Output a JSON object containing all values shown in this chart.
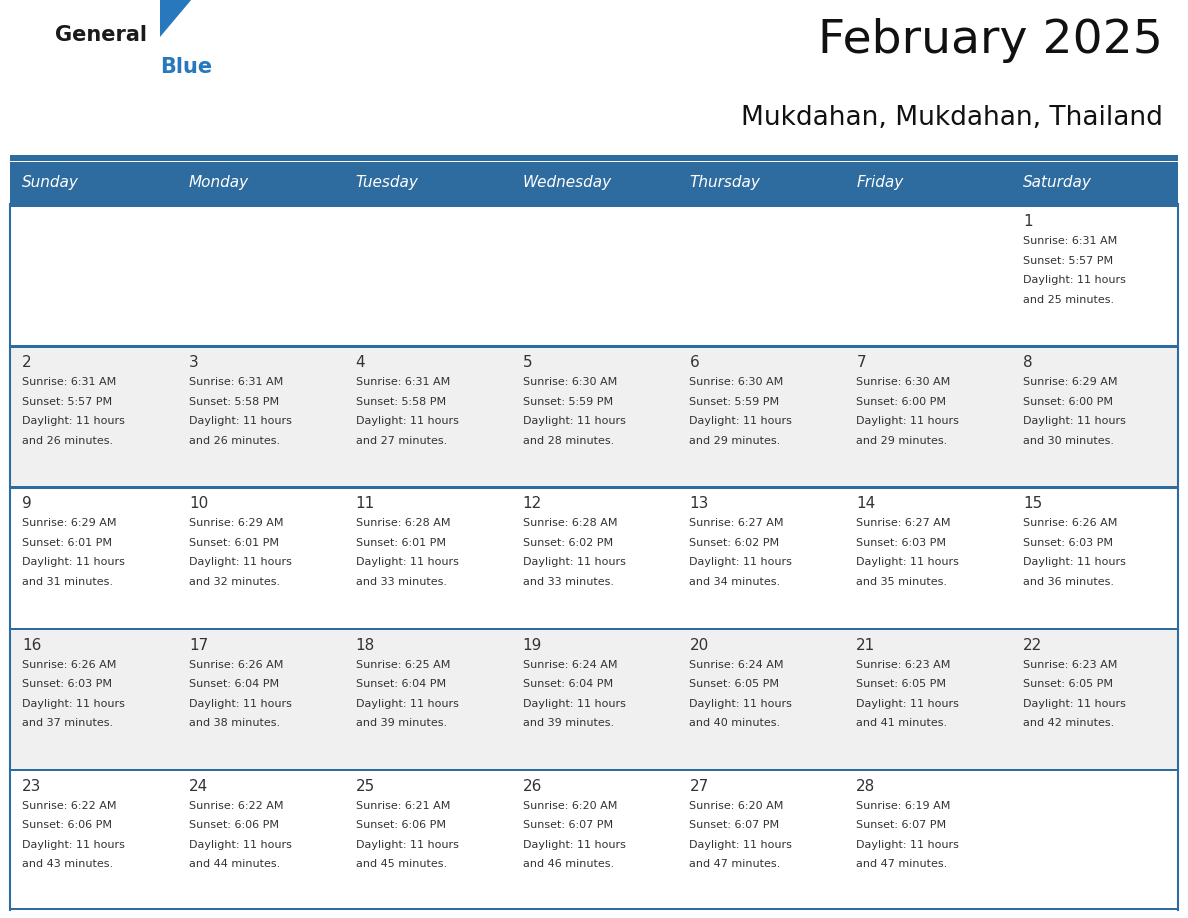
{
  "title": "February 2025",
  "subtitle": "Mukdahan, Mukdahan, Thailand",
  "header_bg": "#2E6B9E",
  "header_text_color": "#FFFFFF",
  "cell_bg_white": "#FFFFFF",
  "cell_bg_gray": "#F0F0F0",
  "border_color": "#2E6B9E",
  "text_color": "#333333",
  "day_headers": [
    "Sunday",
    "Monday",
    "Tuesday",
    "Wednesday",
    "Thursday",
    "Friday",
    "Saturday"
  ],
  "logo_text1": "General",
  "logo_text2": "Blue",
  "logo_color1": "#1a1a1a",
  "logo_color2": "#2878BE",
  "logo_triangle_color": "#2878BE",
  "weeks": [
    [
      {
        "day": null,
        "info": null
      },
      {
        "day": null,
        "info": null
      },
      {
        "day": null,
        "info": null
      },
      {
        "day": null,
        "info": null
      },
      {
        "day": null,
        "info": null
      },
      {
        "day": null,
        "info": null
      },
      {
        "day": 1,
        "info": "Sunrise: 6:31 AM\nSunset: 5:57 PM\nDaylight: 11 hours\nand 25 minutes."
      }
    ],
    [
      {
        "day": 2,
        "info": "Sunrise: 6:31 AM\nSunset: 5:57 PM\nDaylight: 11 hours\nand 26 minutes."
      },
      {
        "day": 3,
        "info": "Sunrise: 6:31 AM\nSunset: 5:58 PM\nDaylight: 11 hours\nand 26 minutes."
      },
      {
        "day": 4,
        "info": "Sunrise: 6:31 AM\nSunset: 5:58 PM\nDaylight: 11 hours\nand 27 minutes."
      },
      {
        "day": 5,
        "info": "Sunrise: 6:30 AM\nSunset: 5:59 PM\nDaylight: 11 hours\nand 28 minutes."
      },
      {
        "day": 6,
        "info": "Sunrise: 6:30 AM\nSunset: 5:59 PM\nDaylight: 11 hours\nand 29 minutes."
      },
      {
        "day": 7,
        "info": "Sunrise: 6:30 AM\nSunset: 6:00 PM\nDaylight: 11 hours\nand 29 minutes."
      },
      {
        "day": 8,
        "info": "Sunrise: 6:29 AM\nSunset: 6:00 PM\nDaylight: 11 hours\nand 30 minutes."
      }
    ],
    [
      {
        "day": 9,
        "info": "Sunrise: 6:29 AM\nSunset: 6:01 PM\nDaylight: 11 hours\nand 31 minutes."
      },
      {
        "day": 10,
        "info": "Sunrise: 6:29 AM\nSunset: 6:01 PM\nDaylight: 11 hours\nand 32 minutes."
      },
      {
        "day": 11,
        "info": "Sunrise: 6:28 AM\nSunset: 6:01 PM\nDaylight: 11 hours\nand 33 minutes."
      },
      {
        "day": 12,
        "info": "Sunrise: 6:28 AM\nSunset: 6:02 PM\nDaylight: 11 hours\nand 33 minutes."
      },
      {
        "day": 13,
        "info": "Sunrise: 6:27 AM\nSunset: 6:02 PM\nDaylight: 11 hours\nand 34 minutes."
      },
      {
        "day": 14,
        "info": "Sunrise: 6:27 AM\nSunset: 6:03 PM\nDaylight: 11 hours\nand 35 minutes."
      },
      {
        "day": 15,
        "info": "Sunrise: 6:26 AM\nSunset: 6:03 PM\nDaylight: 11 hours\nand 36 minutes."
      }
    ],
    [
      {
        "day": 16,
        "info": "Sunrise: 6:26 AM\nSunset: 6:03 PM\nDaylight: 11 hours\nand 37 minutes."
      },
      {
        "day": 17,
        "info": "Sunrise: 6:26 AM\nSunset: 6:04 PM\nDaylight: 11 hours\nand 38 minutes."
      },
      {
        "day": 18,
        "info": "Sunrise: 6:25 AM\nSunset: 6:04 PM\nDaylight: 11 hours\nand 39 minutes."
      },
      {
        "day": 19,
        "info": "Sunrise: 6:24 AM\nSunset: 6:04 PM\nDaylight: 11 hours\nand 39 minutes."
      },
      {
        "day": 20,
        "info": "Sunrise: 6:24 AM\nSunset: 6:05 PM\nDaylight: 11 hours\nand 40 minutes."
      },
      {
        "day": 21,
        "info": "Sunrise: 6:23 AM\nSunset: 6:05 PM\nDaylight: 11 hours\nand 41 minutes."
      },
      {
        "day": 22,
        "info": "Sunrise: 6:23 AM\nSunset: 6:05 PM\nDaylight: 11 hours\nand 42 minutes."
      }
    ],
    [
      {
        "day": 23,
        "info": "Sunrise: 6:22 AM\nSunset: 6:06 PM\nDaylight: 11 hours\nand 43 minutes."
      },
      {
        "day": 24,
        "info": "Sunrise: 6:22 AM\nSunset: 6:06 PM\nDaylight: 11 hours\nand 44 minutes."
      },
      {
        "day": 25,
        "info": "Sunrise: 6:21 AM\nSunset: 6:06 PM\nDaylight: 11 hours\nand 45 minutes."
      },
      {
        "day": 26,
        "info": "Sunrise: 6:20 AM\nSunset: 6:07 PM\nDaylight: 11 hours\nand 46 minutes."
      },
      {
        "day": 27,
        "info": "Sunrise: 6:20 AM\nSunset: 6:07 PM\nDaylight: 11 hours\nand 47 minutes."
      },
      {
        "day": 28,
        "info": "Sunrise: 6:19 AM\nSunset: 6:07 PM\nDaylight: 11 hours\nand 47 minutes."
      },
      {
        "day": null,
        "info": null
      }
    ]
  ]
}
